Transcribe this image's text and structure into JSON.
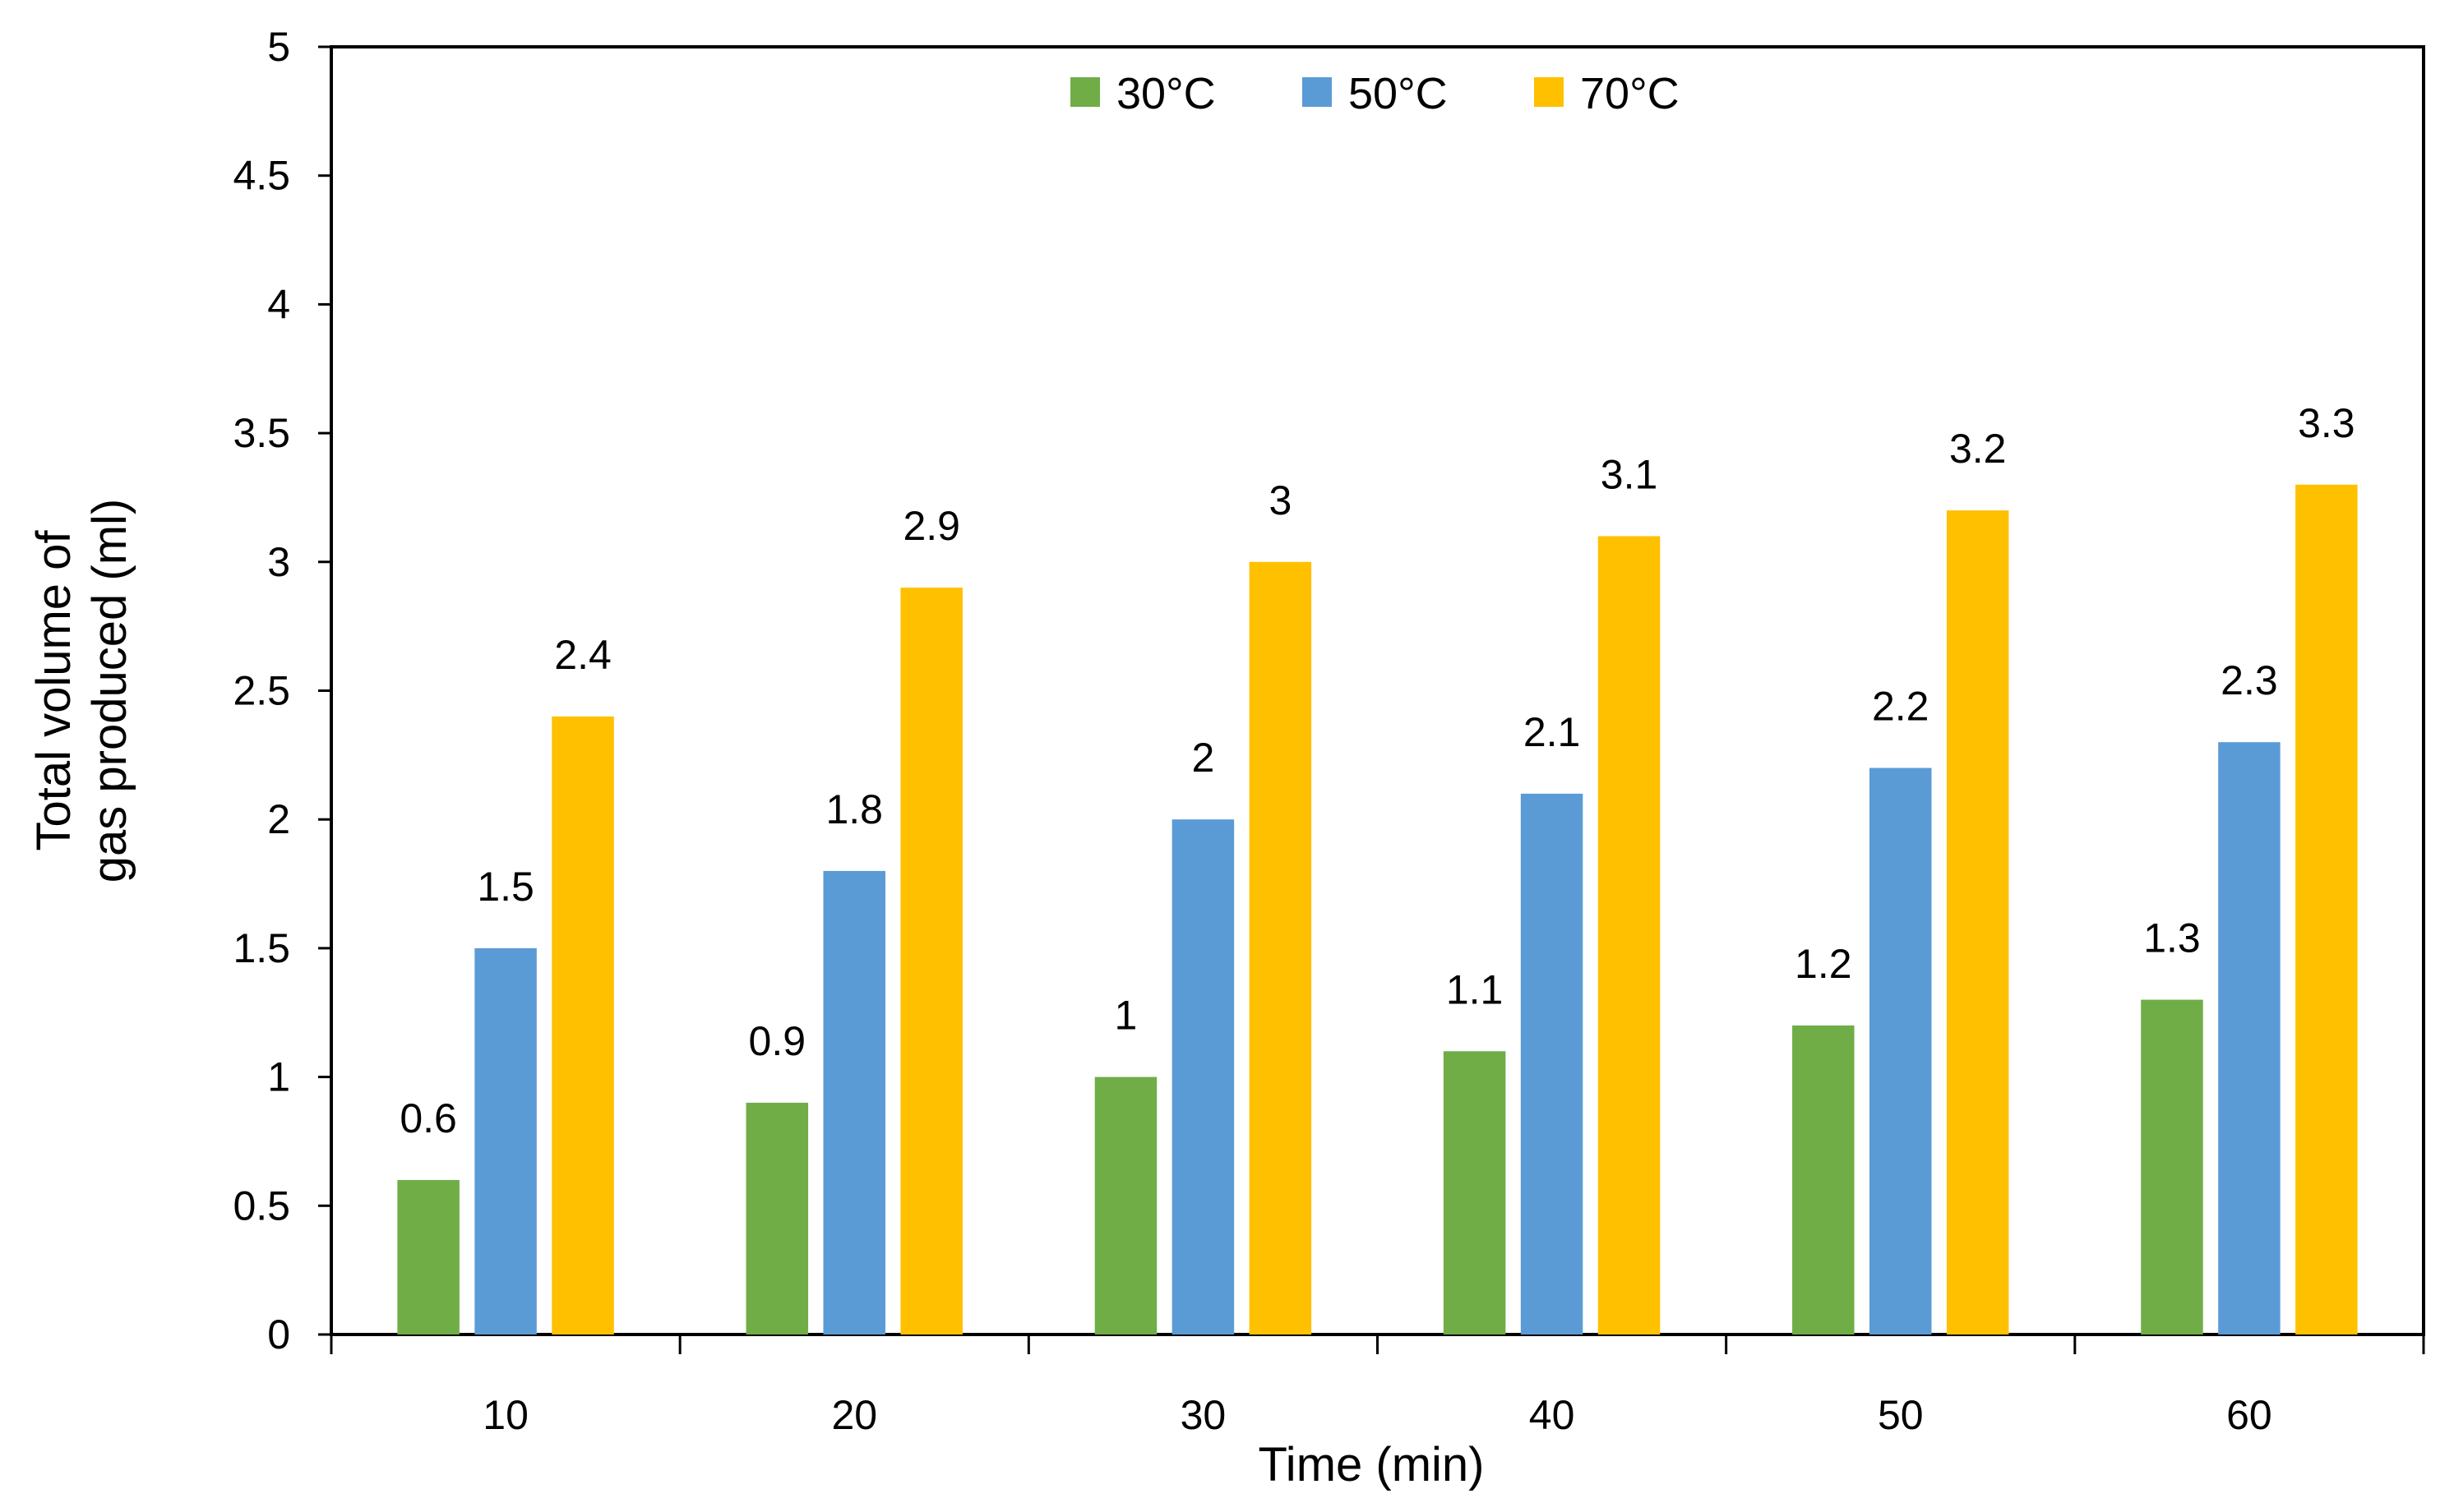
{
  "chart_data": {
    "type": "bar",
    "title": "",
    "xlabel": "Time (min)",
    "ylabel": [
      "Total volume of",
      "gas produced (ml)"
    ],
    "categories": [
      "10",
      "20",
      "30",
      "40",
      "50",
      "60"
    ],
    "series": [
      {
        "name": "30°C",
        "color": "#70AD47",
        "values": [
          0.6,
          0.9,
          1,
          1.1,
          1.2,
          1.3
        ]
      },
      {
        "name": "50°C",
        "color": "#5B9BD5",
        "values": [
          1.5,
          1.8,
          2,
          2.1,
          2.2,
          2.3
        ]
      },
      {
        "name": "70°C",
        "color": "#FFC000",
        "values": [
          2.4,
          2.9,
          3,
          3.1,
          3.2,
          3.3
        ]
      }
    ],
    "yticks": [
      "0",
      "0.5",
      "1",
      "1.5",
      "2",
      "2.5",
      "3",
      "3.5",
      "4",
      "4.5",
      "5"
    ],
    "ylim": [
      0,
      5
    ],
    "grid": false,
    "legend_position": "top-center",
    "data_labels": true
  }
}
